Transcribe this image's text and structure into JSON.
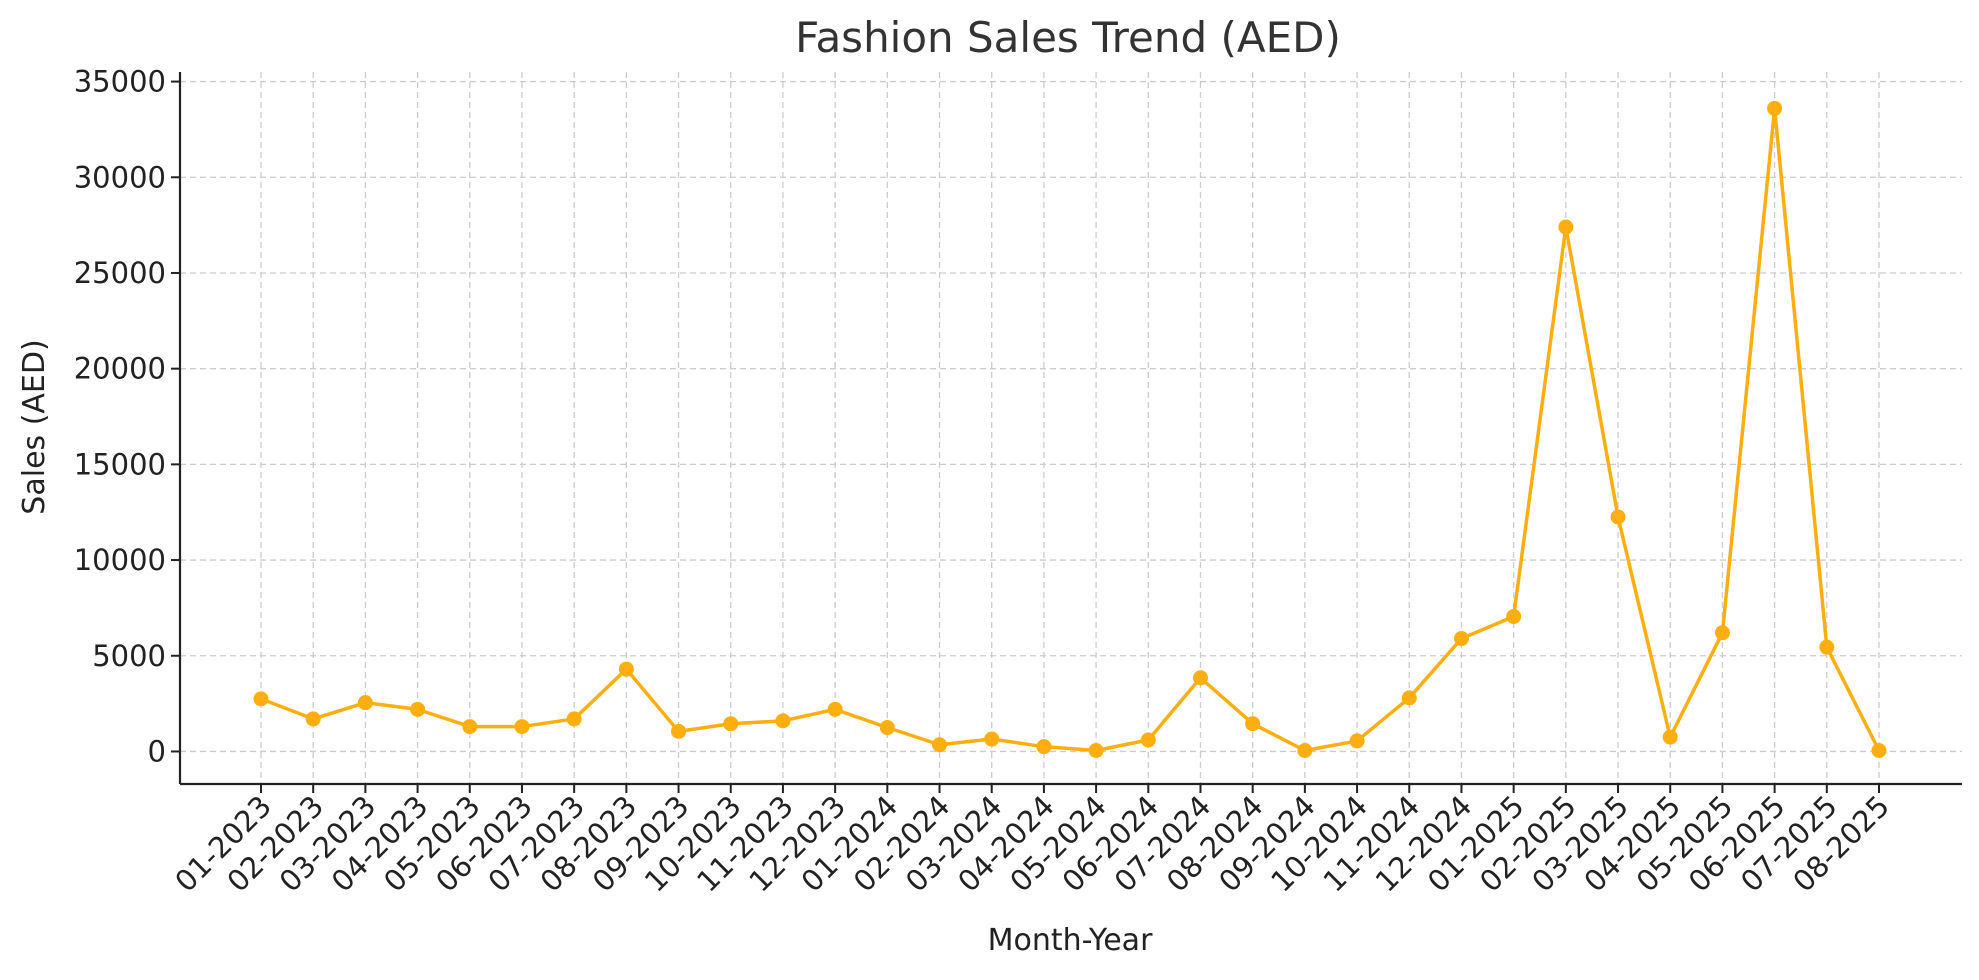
{
  "chart_data": {
    "type": "line",
    "title": "Fashion Sales Trend (AED)",
    "xlabel": "Month-Year",
    "ylabel": "Sales (AED)",
    "ylim": [
      -1700,
      35500
    ],
    "yticks": [
      0,
      5000,
      10000,
      15000,
      20000,
      25000,
      30000,
      35000
    ],
    "grid": true,
    "legend": "none",
    "colors": {
      "line": "#FFAE0F",
      "axis": "#222222",
      "grid": "#cccccc",
      "text": "#333333"
    },
    "categories": [
      "01-2023",
      "02-2023",
      "03-2023",
      "04-2023",
      "05-2023",
      "06-2023",
      "07-2023",
      "08-2023",
      "09-2023",
      "10-2023",
      "11-2023",
      "12-2023",
      "01-2024",
      "02-2024",
      "03-2024",
      "04-2024",
      "05-2024",
      "06-2024",
      "07-2024",
      "08-2024",
      "09-2024",
      "10-2024",
      "11-2024",
      "12-2024",
      "01-2025",
      "02-2025",
      "03-2025",
      "04-2025",
      "05-2025",
      "06-2025",
      "07-2025",
      "08-2025"
    ],
    "series": [
      {
        "values": [
          2750,
          1700,
          2550,
          2200,
          1300,
          1300,
          1700,
          4300,
          1050,
          1450,
          1600,
          2200,
          1250,
          350,
          650,
          250,
          50,
          600,
          3850,
          1450,
          50,
          550,
          2800,
          5900,
          7050,
          27400,
          12250,
          750,
          6200,
          33600,
          5450,
          50
        ]
      }
    ]
  }
}
